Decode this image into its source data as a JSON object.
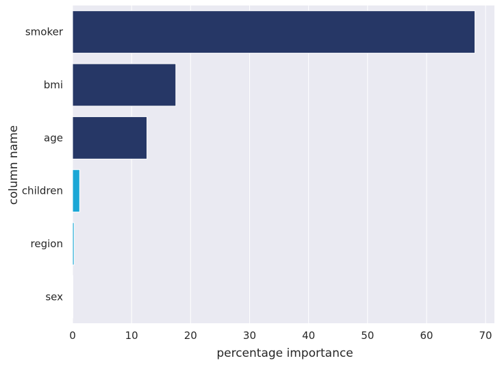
{
  "chart_data": {
    "type": "bar",
    "orientation": "horizontal",
    "title": "",
    "xlabel": "percentage importance",
    "ylabel": "column name",
    "categories": [
      "smoker",
      "bmi",
      "age",
      "children",
      "region",
      "sex"
    ],
    "values": [
      68.2,
      17.5,
      12.6,
      1.2,
      0.25,
      0.05
    ],
    "bar_colors": [
      "#263766",
      "#263766",
      "#263766",
      "#1ba7d6",
      "#1ba7d6",
      "#1ba7d6"
    ],
    "xlim": [
      0,
      71.5
    ],
    "xticks": [
      "0",
      "10",
      "20",
      "30",
      "40",
      "50",
      "60",
      "70"
    ],
    "grid": true,
    "background": "#eaeaf2",
    "legend": "none"
  }
}
